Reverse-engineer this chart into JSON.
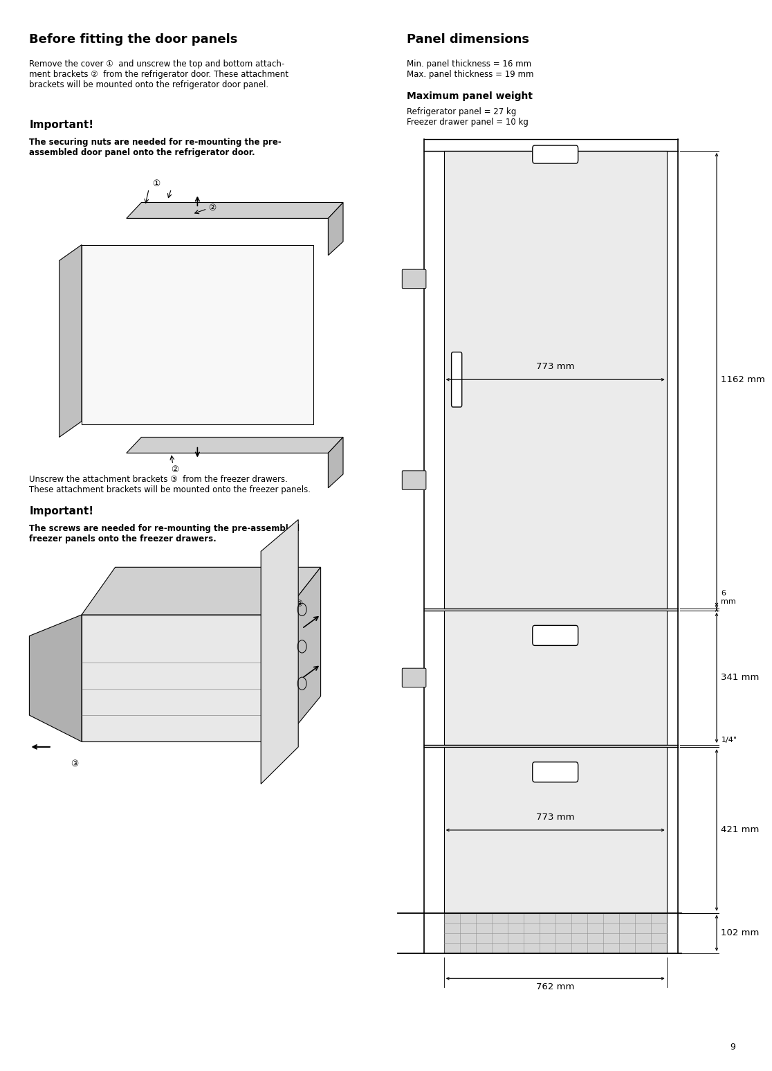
{
  "page_bg": "#ffffff",
  "title_left": "Before fitting the door panels",
  "title_right": "Panel dimensions",
  "body_text_left1": "Remove the cover ①  and unscrew the top and bottom attach-\nment brackets ②  from the refrigerator door. These attachment\nbrackets will be mounted onto the refrigerator door panel.",
  "important_label": "Important!",
  "important_body1": "The securing nuts are needed for re-mounting the pre-\nassembled door panel onto the refrigerator door.",
  "panel_dims_body": "Min. panel thickness = 16 mm\nMax. panel thickness = 19 mm",
  "max_panel_weight_label": "Maximum panel weight",
  "max_panel_weight_body": "Refrigerator panel = 27 kg\nFreezer drawer panel = 10 kg",
  "unscrew_text": "Unscrew the attachment brackets ③  from the freezer drawers.\nThese attachment brackets will be mounted onto the freezer panels.",
  "important_label2": "Important!",
  "important_body2": "The screws are needed for re-mounting the pre-assembled\nfreezer panels onto the freezer drawers.",
  "page_number": "9",
  "dim_773_top": "773 mm",
  "dim_1162": "1162 mm",
  "dim_6": "6\nmm",
  "dim_341": "341 mm",
  "dim_quarter": "1/4\"",
  "dim_773_bot": "773 mm",
  "dim_421": "421 mm",
  "dim_102": "102 mm",
  "dim_762": "762 mm"
}
